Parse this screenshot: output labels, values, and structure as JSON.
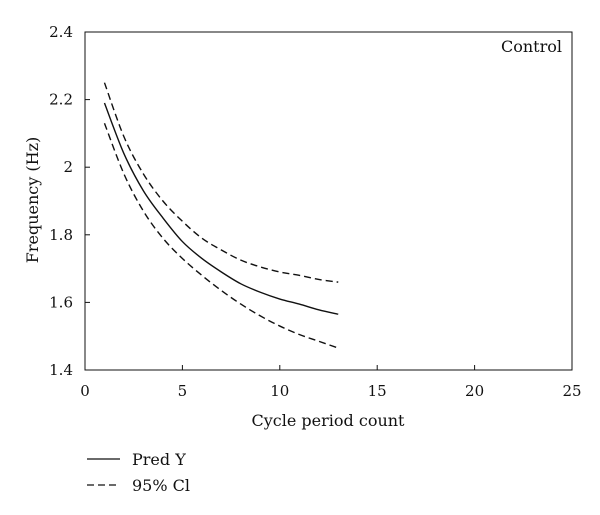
{
  "chart_data": {
    "type": "line",
    "title": "",
    "annotation": "Control",
    "xlabel": "Cycle period count",
    "ylabel": "Frequency (Hz)",
    "xlim": [
      0,
      25
    ],
    "ylim": [
      1.4,
      2.4
    ],
    "xticks": [
      0,
      5,
      10,
      15,
      20,
      25
    ],
    "yticks": [
      1.4,
      1.6,
      1.8,
      2,
      2.2,
      2.4
    ],
    "xtick_labels": [
      "0",
      "5",
      "10",
      "15",
      "20",
      "25"
    ],
    "ytick_labels": [
      "1.4",
      "1.6",
      "1.8",
      "2",
      "2.2",
      "2.4"
    ],
    "grid": false,
    "legend_position": "bottom-left outside",
    "series": [
      {
        "name": "Pred Y",
        "style": "solid",
        "color": "#111111",
        "x": [
          1,
          2,
          3,
          4,
          5,
          6,
          7,
          8,
          9,
          10,
          11,
          12,
          13
        ],
        "y": [
          2.19,
          2.04,
          1.93,
          1.85,
          1.78,
          1.73,
          1.69,
          1.655,
          1.63,
          1.61,
          1.595,
          1.578,
          1.565
        ]
      },
      {
        "name": "95% Cl",
        "style": "dashed",
        "color": "#111111",
        "x": [
          1,
          2,
          3,
          4,
          5,
          6,
          7,
          8,
          9,
          10,
          11,
          12,
          13
        ],
        "y": [
          2.25,
          2.09,
          1.98,
          1.9,
          1.84,
          1.79,
          1.755,
          1.725,
          1.705,
          1.69,
          1.68,
          1.668,
          1.66
        ]
      },
      {
        "name": "",
        "legend_group": "95% Cl",
        "style": "dashed",
        "color": "#111111",
        "x": [
          1,
          2,
          3,
          4,
          5,
          6,
          7,
          8,
          9,
          10,
          11,
          12,
          13
        ],
        "y": [
          2.13,
          1.98,
          1.87,
          1.79,
          1.73,
          1.68,
          1.635,
          1.595,
          1.56,
          1.53,
          1.505,
          1.485,
          1.465
        ]
      }
    ]
  }
}
